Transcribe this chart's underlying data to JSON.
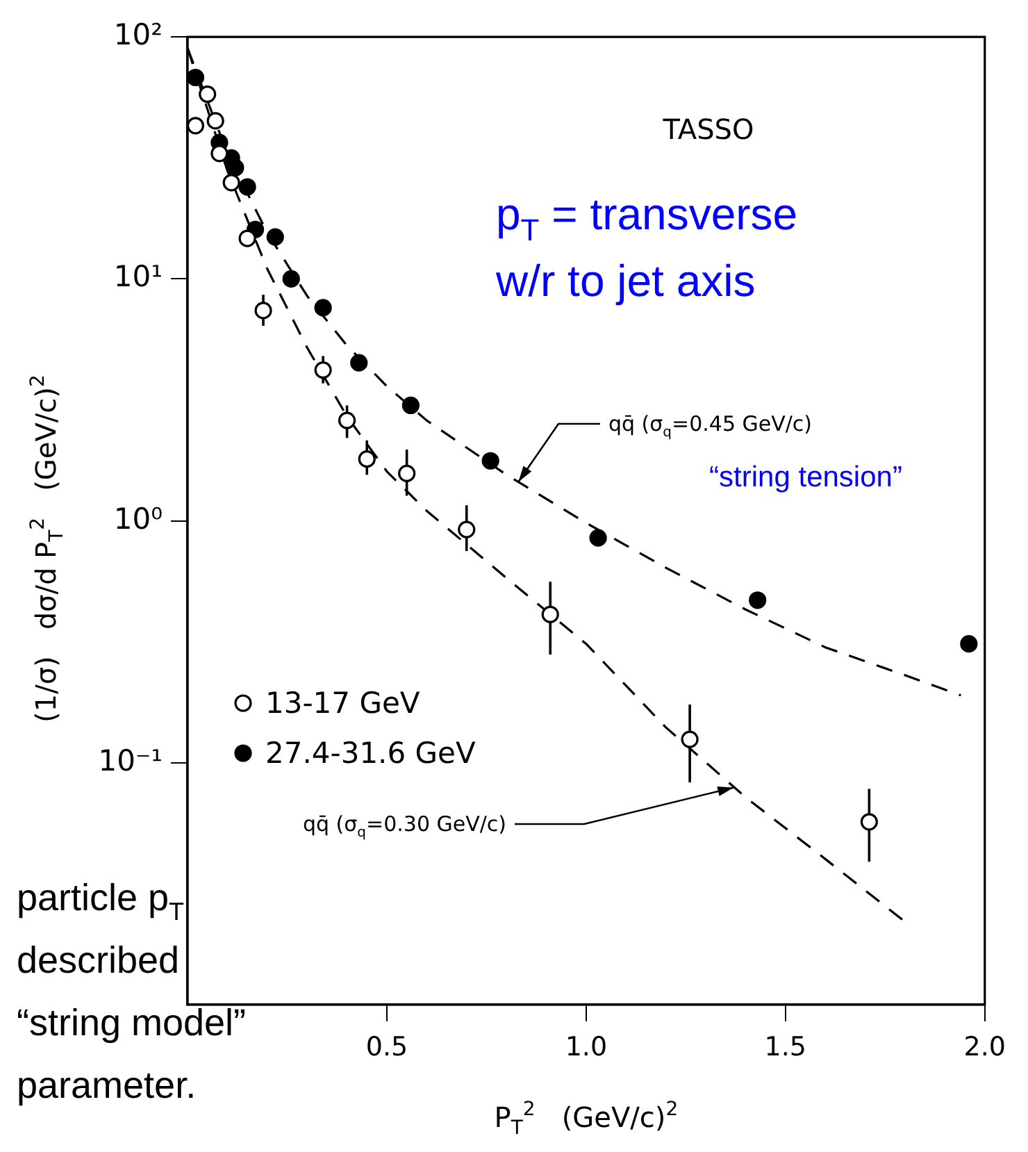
{
  "chart_data": {
    "type": "scatter",
    "xlabel": "P$_{T}$$^{2}$   (GeV/c)$^{2}$",
    "ylabel": "(1/σ)   dσ/d P$_{T}$$^{2}$   (GeV/c)$^{2}$",
    "xlim": [
      0,
      2.0
    ],
    "xticks": [
      {
        "value": 0.5,
        "label": "0.5"
      },
      {
        "value": 1.0,
        "label": "1.0"
      },
      {
        "value": 1.5,
        "label": "1.5"
      },
      {
        "value": 2.0,
        "label": "2.0"
      }
    ],
    "ylim": [
      0.01,
      100
    ],
    "yticks": [
      {
        "value": 0.1,
        "label": "10⁻¹"
      },
      {
        "value": 1,
        "label": "10⁰"
      },
      {
        "value": 10,
        "label": "10¹"
      },
      {
        "value": 100,
        "label": "10²"
      }
    ],
    "log": "y",
    "legend": "bottom left",
    "marker": "circle",
    "series": [
      {
        "name": "13-17 GeV",
        "color": "#000000",
        "x": [
          0.02,
          0.05,
          0.07,
          0.08,
          0.11,
          0.15,
          0.19,
          0.34,
          0.4,
          0.45,
          0.55,
          0.7,
          0.91,
          1.26,
          1.71
        ],
        "values": [
          43,
          58,
          45,
          33,
          25,
          14.7,
          7.4,
          4.2,
          2.6,
          1.8,
          1.57,
          0.92,
          0.41,
          0.125,
          0.057
        ],
        "errors": [
          null,
          null,
          null,
          null,
          null,
          null,
          [
            6.4,
            8.6
          ],
          [
            3.7,
            4.8
          ],
          [
            2.2,
            3.0
          ],
          [
            1.55,
            2.15
          ],
          [
            1.27,
            1.97
          ],
          [
            0.75,
            1.16
          ],
          [
            0.28,
            0.56
          ],
          [
            0.083,
            0.174
          ],
          [
            0.039,
            0.078
          ]
        ]
      },
      {
        "name": "27.4-31.6 GeV",
        "color": "#000000",
        "x": [
          0.02,
          0.08,
          0.11,
          0.12,
          0.15,
          0.17,
          0.22,
          0.26,
          0.34,
          0.43,
          0.56,
          0.76,
          1.03,
          1.43,
          1.96
        ],
        "values": [
          68,
          36.6,
          31.6,
          28.8,
          24,
          16,
          14.9,
          10,
          7.6,
          4.5,
          3.0,
          1.77,
          0.85,
          0.47,
          0.31
        ]
      },
      {
        "type": "line",
        "color": "#000000",
        "line_style": "dashed",
        "marker": "none",
        "x": [
          0,
          0.1,
          0.2,
          0.3,
          0.4,
          0.5,
          0.6,
          0.8,
          1.0,
          1.2,
          1.4,
          1.6,
          1.8,
          1.94
        ],
        "values": [
          90,
          33,
          15.5,
          8.5,
          5.3,
          3.6,
          2.6,
          1.55,
          0.98,
          0.64,
          0.43,
          0.3,
          0.23,
          0.19
        ]
      },
      {
        "type": "line",
        "color": "#000000",
        "line_style": "dashed",
        "marker": "none",
        "x": [
          0,
          0.1,
          0.2,
          0.3,
          0.4,
          0.5,
          0.6,
          0.8,
          1.0,
          1.2,
          1.4,
          1.6,
          1.8
        ],
        "values": [
          90,
          28,
          11,
          5.2,
          2.7,
          1.6,
          1.1,
          0.58,
          0.31,
          0.14,
          0.072,
          0.04,
          0.022
        ]
      }
    ],
    "annotations": [
      "TASSO",
      "p$_{T}$ = transverse",
      "w/r to jet axis",
      {
        "text": "qq̄ (σ$_{q}$=0.45 GeV/c)",
        "x": 0.83,
        "y": 1.45
      },
      "“string tension”",
      {
        "text": "qq̄ (σ$_{q}$=0.30 GeV/c)",
        "x": 1.37,
        "y": 0.079
      },
      "particle p$_{T}$",
      "described",
      "“string model”",
      "parameter."
    ]
  }
}
